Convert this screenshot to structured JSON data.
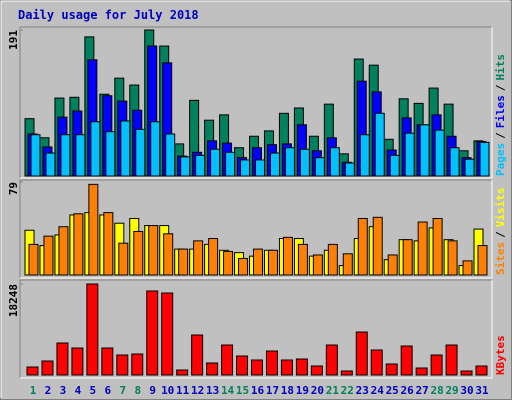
{
  "legend_separator": "/",
  "chart_data": [
    {
      "type": "bar",
      "title": "Daily usage for July 2018",
      "ylim": [
        0,
        191
      ],
      "yticks": [
        191
      ],
      "series": [
        {
          "name": "Hits",
          "color": "#00805c",
          "values": [
            75,
            50,
            102,
            103,
            182,
            107,
            128,
            119,
            191,
            170,
            42,
            99,
            73,
            80,
            37,
            52,
            59,
            82,
            89,
            52,
            94,
            29,
            153,
            145,
            48,
            101,
            95,
            115,
            94,
            33,
            46
          ]
        },
        {
          "name": "Files",
          "color": "#0000ff",
          "values": [
            55,
            38,
            77,
            85,
            152,
            105,
            98,
            86,
            170,
            148,
            26,
            31,
            46,
            43,
            24,
            37,
            41,
            42,
            67,
            33,
            50,
            18,
            124,
            110,
            34,
            76,
            67,
            80,
            52,
            24,
            45
          ]
        },
        {
          "name": "Pages",
          "color": "#00c0ff",
          "values": [
            54,
            30,
            54,
            54,
            71,
            58,
            72,
            61,
            71,
            55,
            25,
            27,
            35,
            31,
            21,
            21,
            30,
            37,
            35,
            24,
            37,
            17,
            54,
            82,
            27,
            56,
            67,
            60,
            37,
            22,
            44
          ]
        }
      ]
    },
    {
      "type": "bar",
      "ylim": [
        0,
        79
      ],
      "yticks": [
        79
      ],
      "series": [
        {
          "name": "Visits",
          "color": "#ffff00",
          "values": [
            38,
            25,
            34,
            51,
            53,
            51,
            44,
            48,
            42,
            42,
            22,
            22,
            26,
            21,
            19,
            16,
            21,
            31,
            31,
            16,
            21,
            8,
            31,
            41,
            13,
            30,
            29,
            40,
            30,
            8,
            39
          ]
        },
        {
          "name": "Sites",
          "color": "#ff8000",
          "values": [
            26,
            33,
            41,
            52,
            77,
            53,
            27,
            37,
            42,
            35,
            22,
            29,
            31,
            20,
            14,
            22,
            21,
            32,
            26,
            17,
            26,
            18,
            48,
            49,
            17,
            30,
            45,
            48,
            29,
            12,
            25
          ]
        }
      ]
    },
    {
      "type": "bar",
      "ylim": [
        0,
        18248
      ],
      "yticks": [
        18248
      ],
      "categories": [
        "1",
        "2",
        "3",
        "4",
        "5",
        "6",
        "7",
        "8",
        "9",
        "10",
        "11",
        "12",
        "13",
        "14",
        "15",
        "16",
        "17",
        "18",
        "19",
        "20",
        "21",
        "22",
        "23",
        "24",
        "25",
        "26",
        "27",
        "28",
        "29",
        "30",
        "31"
      ],
      "highlight_categories": [
        "1",
        "7",
        "8",
        "14",
        "15",
        "21",
        "22",
        "28",
        "29"
      ],
      "highlight_color": "#00805c",
      "category_color": "#0000c0",
      "series": [
        {
          "name": "KBytes",
          "color": "#ff0000",
          "values": [
            1604,
            2807,
            6416,
            5413,
            18248,
            5413,
            4010,
            4211,
            16845,
            16444,
            1003,
            8020,
            2406,
            6015,
            3810,
            3008,
            4812,
            3008,
            3208,
            1805,
            6015,
            802,
            8622,
            5013,
            2206,
            5815,
            1404,
            4010,
            6015,
            802,
            1805
          ]
        }
      ]
    }
  ]
}
